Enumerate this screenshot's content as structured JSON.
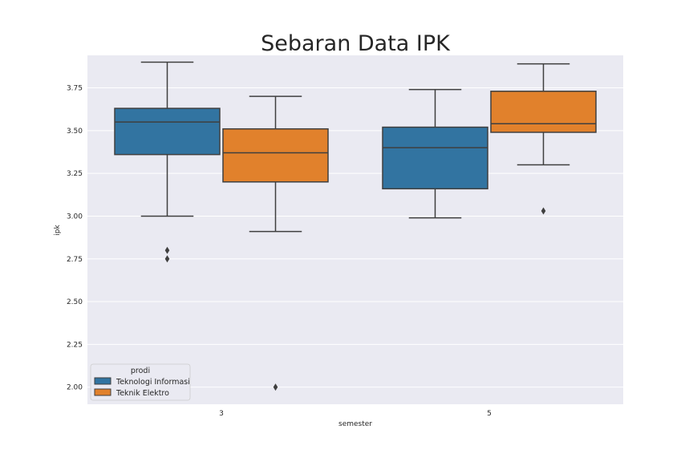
{
  "chart_data": {
    "type": "box",
    "title": "Sebaran Data IPK",
    "xlabel": "semester",
    "ylabel": "ipk",
    "categories": [
      "3",
      "5"
    ],
    "ylim": [
      1.9,
      3.94
    ],
    "yticks": [
      "2.00",
      "2.25",
      "2.50",
      "2.75",
      "3.00",
      "3.25",
      "3.50",
      "3.75"
    ],
    "ytick_values": [
      2.0,
      2.25,
      2.5,
      2.75,
      3.0,
      3.25,
      3.5,
      3.75
    ],
    "grid": true,
    "legend": {
      "title": "prodi",
      "placement": "lower-left"
    },
    "series": [
      {
        "name": "Teknologi Informasi",
        "color": "#3274a1",
        "boxes": [
          {
            "category": "3",
            "whisker_low": 3.0,
            "q1": 3.36,
            "median": 3.55,
            "q3": 3.63,
            "whisker_high": 3.9,
            "outliers": [
              2.8,
              2.75
            ]
          },
          {
            "category": "5",
            "whisker_low": 2.99,
            "q1": 3.16,
            "median": 3.4,
            "q3": 3.52,
            "whisker_high": 3.74,
            "outliers": []
          }
        ]
      },
      {
        "name": "Teknik Elektro",
        "color": "#e1812c",
        "boxes": [
          {
            "category": "3",
            "whisker_low": 2.91,
            "q1": 3.2,
            "median": 3.37,
            "q3": 3.51,
            "whisker_high": 3.7,
            "outliers": [
              2.0
            ]
          },
          {
            "category": "5",
            "whisker_low": 3.3,
            "q1": 3.49,
            "median": 3.54,
            "q3": 3.73,
            "whisker_high": 3.89,
            "outliers": [
              3.03
            ]
          }
        ]
      }
    ]
  }
}
